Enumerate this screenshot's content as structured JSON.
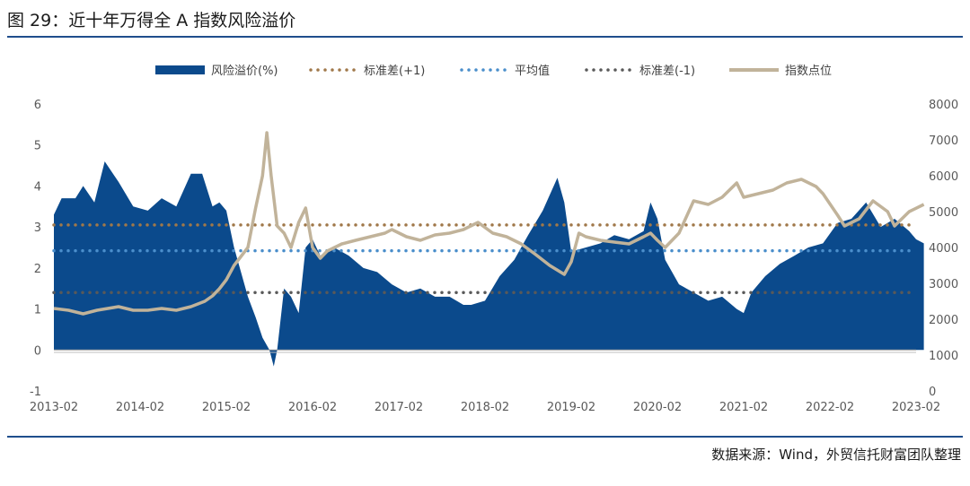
{
  "header": {
    "title": "图 29：近十年万得全 A 指数风险溢价"
  },
  "footer": {
    "source": "数据来源：Wind，外贸信托财富团队整理"
  },
  "chart_data": {
    "type": "area+line",
    "x_ticks": [
      "2013-02",
      "2014-02",
      "2015-02",
      "2016-02",
      "2017-02",
      "2018-02",
      "2019-02",
      "2020-02",
      "2021-02",
      "2022-02",
      "2023-02"
    ],
    "y_left": {
      "ticks": [
        "6",
        "5",
        "4",
        "3",
        "2",
        "1",
        "0",
        "-1"
      ],
      "range": [
        -1,
        6
      ]
    },
    "y_right": {
      "ticks": [
        "8000",
        "7000",
        "6000",
        "5000",
        "4000",
        "3000",
        "2000",
        "1000",
        "0"
      ],
      "range": [
        0,
        8000
      ]
    },
    "legend": [
      {
        "label": "风险溢价(%)",
        "kind": "area",
        "color": "#0b4a8c"
      },
      {
        "label": "标准差(+1)",
        "kind": "dots",
        "color": "#a0784a"
      },
      {
        "label": "平均值",
        "kind": "dots",
        "color": "#4a8ecb"
      },
      {
        "label": "标准差(-1)",
        "kind": "dots",
        "color": "#595959"
      },
      {
        "label": "指数点位",
        "kind": "line",
        "color": "#c1b39a"
      }
    ],
    "reference_lines": {
      "plus1": 3.05,
      "mean": 2.42,
      "minus1": 1.4
    },
    "series": [
      {
        "name": "风险溢价(%)",
        "axis": "left",
        "points": [
          [
            2013.08,
            3.3
          ],
          [
            2013.17,
            3.7
          ],
          [
            2013.33,
            3.7
          ],
          [
            2013.42,
            4.0
          ],
          [
            2013.55,
            3.6
          ],
          [
            2013.67,
            4.6
          ],
          [
            2013.83,
            4.1
          ],
          [
            2014.0,
            3.5
          ],
          [
            2014.17,
            3.4
          ],
          [
            2014.33,
            3.7
          ],
          [
            2014.5,
            3.5
          ],
          [
            2014.67,
            4.3
          ],
          [
            2014.8,
            4.3
          ],
          [
            2014.92,
            3.5
          ],
          [
            2015.0,
            3.6
          ],
          [
            2015.08,
            3.4
          ],
          [
            2015.17,
            2.5
          ],
          [
            2015.25,
            1.9
          ],
          [
            2015.33,
            1.3
          ],
          [
            2015.42,
            0.8
          ],
          [
            2015.5,
            0.3
          ],
          [
            2015.58,
            0.0
          ],
          [
            2015.63,
            -0.4
          ],
          [
            2015.67,
            0.0
          ],
          [
            2015.75,
            1.5
          ],
          [
            2015.83,
            1.3
          ],
          [
            2015.92,
            0.9
          ],
          [
            2016.0,
            2.5
          ],
          [
            2016.08,
            2.7
          ],
          [
            2016.17,
            2.3
          ],
          [
            2016.33,
            2.5
          ],
          [
            2016.5,
            2.3
          ],
          [
            2016.67,
            2.0
          ],
          [
            2016.83,
            1.9
          ],
          [
            2017.0,
            1.6
          ],
          [
            2017.17,
            1.4
          ],
          [
            2017.33,
            1.5
          ],
          [
            2017.5,
            1.3
          ],
          [
            2017.67,
            1.3
          ],
          [
            2017.83,
            1.1
          ],
          [
            2017.92,
            1.1
          ],
          [
            2018.08,
            1.2
          ],
          [
            2018.25,
            1.8
          ],
          [
            2018.42,
            2.2
          ],
          [
            2018.58,
            2.8
          ],
          [
            2018.75,
            3.4
          ],
          [
            2018.92,
            4.2
          ],
          [
            2019.0,
            3.6
          ],
          [
            2019.08,
            2.4
          ],
          [
            2019.25,
            2.5
          ],
          [
            2019.42,
            2.6
          ],
          [
            2019.58,
            2.8
          ],
          [
            2019.75,
            2.7
          ],
          [
            2019.92,
            2.9
          ],
          [
            2020.0,
            3.6
          ],
          [
            2020.08,
            3.2
          ],
          [
            2020.17,
            2.2
          ],
          [
            2020.33,
            1.6
          ],
          [
            2020.5,
            1.4
          ],
          [
            2020.67,
            1.2
          ],
          [
            2020.83,
            1.3
          ],
          [
            2021.0,
            1.0
          ],
          [
            2021.08,
            0.9
          ],
          [
            2021.17,
            1.4
          ],
          [
            2021.33,
            1.8
          ],
          [
            2021.5,
            2.1
          ],
          [
            2021.67,
            2.3
          ],
          [
            2021.83,
            2.5
          ],
          [
            2022.0,
            2.6
          ],
          [
            2022.17,
            3.1
          ],
          [
            2022.33,
            3.2
          ],
          [
            2022.5,
            3.6
          ],
          [
            2022.67,
            3.0
          ],
          [
            2022.83,
            3.2
          ],
          [
            2023.0,
            2.9
          ],
          [
            2023.08,
            2.7
          ],
          [
            2023.17,
            2.6
          ]
        ]
      },
      {
        "name": "指数点位",
        "axis": "right",
        "points": [
          [
            2013.08,
            2300
          ],
          [
            2013.25,
            2250
          ],
          [
            2013.42,
            2150
          ],
          [
            2013.58,
            2250
          ],
          [
            2013.83,
            2350
          ],
          [
            2014.0,
            2250
          ],
          [
            2014.17,
            2250
          ],
          [
            2014.33,
            2300
          ],
          [
            2014.5,
            2250
          ],
          [
            2014.67,
            2350
          ],
          [
            2014.83,
            2500
          ],
          [
            2014.92,
            2650
          ],
          [
            2015.0,
            2850
          ],
          [
            2015.08,
            3100
          ],
          [
            2015.17,
            3500
          ],
          [
            2015.33,
            4000
          ],
          [
            2015.42,
            5100
          ],
          [
            2015.5,
            6000
          ],
          [
            2015.55,
            7200
          ],
          [
            2015.6,
            6000
          ],
          [
            2015.67,
            4600
          ],
          [
            2015.75,
            4400
          ],
          [
            2015.83,
            4000
          ],
          [
            2015.92,
            4700
          ],
          [
            2016.0,
            5100
          ],
          [
            2016.08,
            4000
          ],
          [
            2016.17,
            3700
          ],
          [
            2016.25,
            3900
          ],
          [
            2016.42,
            4100
          ],
          [
            2016.58,
            4200
          ],
          [
            2016.75,
            4300
          ],
          [
            2016.92,
            4400
          ],
          [
            2017.0,
            4500
          ],
          [
            2017.17,
            4300
          ],
          [
            2017.33,
            4200
          ],
          [
            2017.5,
            4350
          ],
          [
            2017.67,
            4400
          ],
          [
            2017.83,
            4500
          ],
          [
            2018.0,
            4700
          ],
          [
            2018.17,
            4400
          ],
          [
            2018.33,
            4300
          ],
          [
            2018.5,
            4100
          ],
          [
            2018.67,
            3800
          ],
          [
            2018.83,
            3500
          ],
          [
            2019.0,
            3250
          ],
          [
            2019.08,
            3600
          ],
          [
            2019.17,
            4400
          ],
          [
            2019.25,
            4300
          ],
          [
            2019.42,
            4200
          ],
          [
            2019.58,
            4150
          ],
          [
            2019.75,
            4100
          ],
          [
            2019.92,
            4300
          ],
          [
            2020.0,
            4400
          ],
          [
            2020.08,
            4200
          ],
          [
            2020.17,
            4000
          ],
          [
            2020.33,
            4400
          ],
          [
            2020.5,
            5300
          ],
          [
            2020.67,
            5200
          ],
          [
            2020.83,
            5400
          ],
          [
            2021.0,
            5800
          ],
          [
            2021.08,
            5400
          ],
          [
            2021.25,
            5500
          ],
          [
            2021.42,
            5600
          ],
          [
            2021.58,
            5800
          ],
          [
            2021.75,
            5900
          ],
          [
            2021.92,
            5700
          ],
          [
            2022.0,
            5500
          ],
          [
            2022.17,
            4900
          ],
          [
            2022.25,
            4600
          ],
          [
            2022.42,
            4800
          ],
          [
            2022.58,
            5300
          ],
          [
            2022.75,
            5000
          ],
          [
            2022.83,
            4600
          ],
          [
            2023.0,
            5000
          ],
          [
            2023.17,
            5200
          ]
        ]
      }
    ]
  }
}
